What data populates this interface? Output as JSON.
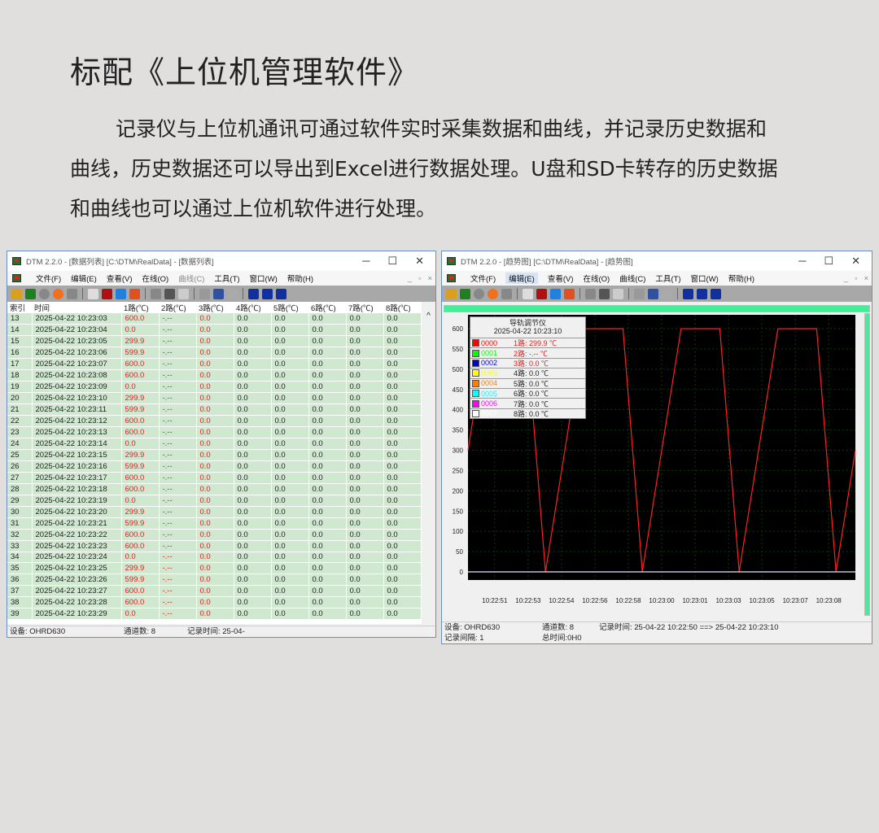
{
  "heading": "标配《上位机管理软件》",
  "paragraph": "记录仪与上位机通讯可通过软件实时采集数据和曲线，并记录历史数据和曲线，历史数据还可以导出到Excel进行数据处理。U盘和SD卡转存的历史数据和曲线也可以通过上位机软件进行处理。",
  "menu": [
    "文件(F)",
    "编辑(E)",
    "查看(V)",
    "在线(O)",
    "曲线(C)",
    "工具(T)",
    "窗口(W)",
    "帮助(H)"
  ],
  "table_window": {
    "title": "DTM 2.2.0 - [数据列表] [C:\\DTM\\RealData] - [数据列表]",
    "columns": [
      "索引",
      "时间",
      "1路(℃)",
      "2路(℃)",
      "3路(℃)",
      "4路(℃)",
      "5路(℃)",
      "6路(℃)",
      "7路(℃)",
      "8路(℃)"
    ],
    "date": "2025-04-22",
    "rows": [
      [
        13,
        "10:23:03",
        "600.0"
      ],
      [
        14,
        "10:23:04",
        "0.0"
      ],
      [
        15,
        "10:23:05",
        "299.9"
      ],
      [
        16,
        "10:23:06",
        "599.9"
      ],
      [
        17,
        "10:23:07",
        "600.0"
      ],
      [
        18,
        "10:23:08",
        "600.0"
      ],
      [
        19,
        "10:23:09",
        "0.0"
      ],
      [
        20,
        "10:23:10",
        "299.9"
      ],
      [
        21,
        "10:23:11",
        "599.9"
      ],
      [
        22,
        "10:23:12",
        "600.0"
      ],
      [
        23,
        "10:23:13",
        "600.0"
      ],
      [
        24,
        "10:23:14",
        "0.0"
      ],
      [
        25,
        "10:23:15",
        "299.9"
      ],
      [
        26,
        "10:23:16",
        "599.9"
      ],
      [
        27,
        "10:23:17",
        "600.0"
      ],
      [
        28,
        "10:23:18",
        "600.0"
      ],
      [
        29,
        "10:23:19",
        "0.0"
      ],
      [
        30,
        "10:23:20",
        "299.9"
      ],
      [
        31,
        "10:23:21",
        "599.9"
      ],
      [
        32,
        "10:23:22",
        "600.0"
      ],
      [
        33,
        "10:23:23",
        "600.0"
      ],
      [
        34,
        "10:23:24",
        "0.0"
      ],
      [
        35,
        "10:23:25",
        "299.9"
      ],
      [
        36,
        "10:23:26",
        "599.9"
      ],
      [
        37,
        "10:23:27",
        "600.0"
      ],
      [
        38,
        "10:23:28",
        "600.0"
      ],
      [
        39,
        "10:23:29",
        "0.0"
      ]
    ],
    "ch2": "-.--",
    "other": "0.0",
    "status": {
      "device": "设备: OHRD630",
      "channels": "通道数: 8",
      "record": "记录时间: 25-04-"
    }
  },
  "trend_window": {
    "title": "DTM 2.2.0 - [趋势图] [C:\\DTM\\RealData] - [趋势图]",
    "legend": {
      "title": "导轨调节仪",
      "time": "2025-04-22 10:23:10",
      "items": [
        {
          "code": "0000",
          "label": "1路: 299.9 ℃",
          "color": "#ff0000",
          "text": "#e02020"
        },
        {
          "code": "0001",
          "label": "2路: -.-- ℃",
          "color": "#00ff00",
          "text": "#e02020"
        },
        {
          "code": "0002",
          "label": "3路: 0.0 ℃",
          "color": "#0000dd",
          "text": "#e02020"
        },
        {
          "code": "0003",
          "label": "4路: 0.0 ℃",
          "color": "#ffff00",
          "text": "#222"
        },
        {
          "code": "0004",
          "label": "5路: 0.0 ℃",
          "color": "#ff8000",
          "text": "#222"
        },
        {
          "code": "0005",
          "label": "6路: 0.0 ℃",
          "color": "#00ffff",
          "text": "#222"
        },
        {
          "code": "0006",
          "label": "7路: 0.0 ℃",
          "color": "#ff00ff",
          "text": "#222"
        },
        {
          "code": "0007",
          "label": "8路: 0.0 ℃",
          "color": "#ffffff",
          "text": "#222"
        }
      ]
    },
    "status": {
      "device": "设备: OHRD630",
      "channels": "通道数: 8",
      "record": "记录时间: 25-04-22 10:22:50 ==> 25-04-22 10:23:10",
      "interval": "记录间隔: 1",
      "total": "总时间:0H0"
    }
  },
  "chart_data": {
    "type": "line",
    "ylim": [
      0,
      600
    ],
    "yticks": [
      0,
      50,
      100,
      150,
      200,
      250,
      300,
      350,
      400,
      450,
      500,
      550,
      600
    ],
    "xlim": [
      "10:22:50",
      "10:23:10"
    ],
    "xticks": [
      "10:22:51",
      "10:22:53",
      "10:22:54",
      "10:22:56",
      "10:22:58",
      "10:23:00",
      "10:23:01",
      "10:23:03",
      "10:23:05",
      "10:23:07",
      "10:23:08"
    ],
    "series": [
      {
        "color": "#ff2020",
        "x": [
          "10:22:50",
          "10:22:51",
          "10:22:52",
          "10:22:53",
          "10:22:54",
          "10:22:55",
          "10:22:56",
          "10:22:57",
          "10:22:58",
          "10:22:59",
          "10:23:00",
          "10:23:01",
          "10:23:02",
          "10:23:03",
          "10:23:04",
          "10:23:05",
          "10:23:06",
          "10:23:07",
          "10:23:08",
          "10:23:09",
          "10:23:10"
        ],
        "y": [
          299.9,
          599.9,
          600,
          600,
          0,
          299.9,
          599.9,
          600,
          600,
          0,
          299.9,
          599.9,
          600,
          600,
          0,
          299.9,
          599.9,
          600,
          600,
          0,
          299.9
        ]
      },
      {
        "color": "#e8e0ff",
        "x": [
          "10:22:50",
          "10:23:10"
        ],
        "y": [
          0,
          0
        ]
      }
    ],
    "grid": true,
    "background": "#000000"
  }
}
